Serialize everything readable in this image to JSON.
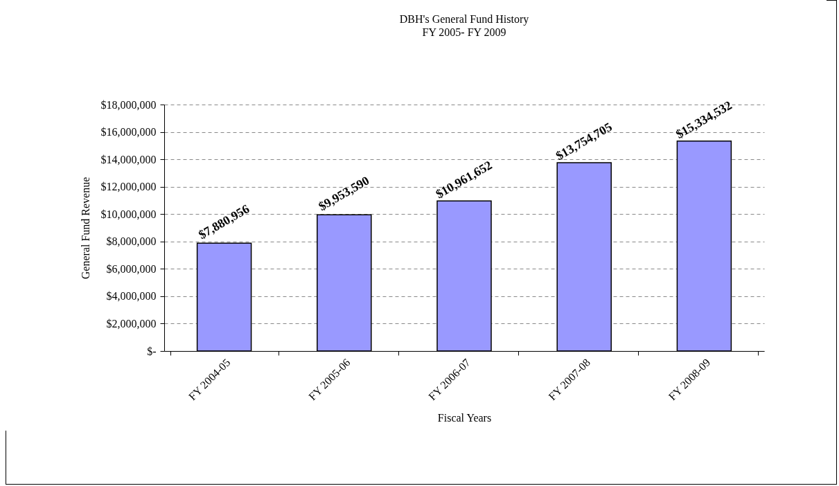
{
  "chart_data": {
    "type": "bar",
    "title": "DBH's General Fund History",
    "subtitle": "FY 2005- FY 2009",
    "xlabel": "Fiscal Years",
    "ylabel": "General Fund Revenue",
    "categories": [
      "FY 2004-05",
      "FY 2005-06",
      "FY 2006-07",
      "FY 2007-08",
      "FY 2008-09"
    ],
    "values": [
      7880956,
      9953590,
      10961652,
      13754705,
      15334532
    ],
    "value_labels": [
      "$7,880,956",
      "$9,953,590",
      "$10,961,652",
      "$13,754,705",
      "$15,334,532"
    ],
    "color": "#9999ff",
    "ylim": [
      0,
      18000000
    ],
    "yticks": [
      {
        "value": 0,
        "label": "$-"
      },
      {
        "value": 2000000,
        "label": "$2,000,000"
      },
      {
        "value": 4000000,
        "label": "$4,000,000"
      },
      {
        "value": 6000000,
        "label": "$6,000,000"
      },
      {
        "value": 8000000,
        "label": "$8,000,000"
      },
      {
        "value": 10000000,
        "label": "$10,000,000"
      },
      {
        "value": 12000000,
        "label": "$12,000,000"
      },
      {
        "value": 14000000,
        "label": "$14,000,000"
      },
      {
        "value": 16000000,
        "label": "$16,000,000"
      },
      {
        "value": 18000000,
        "label": "$18,000,000"
      }
    ],
    "grid": "y"
  }
}
